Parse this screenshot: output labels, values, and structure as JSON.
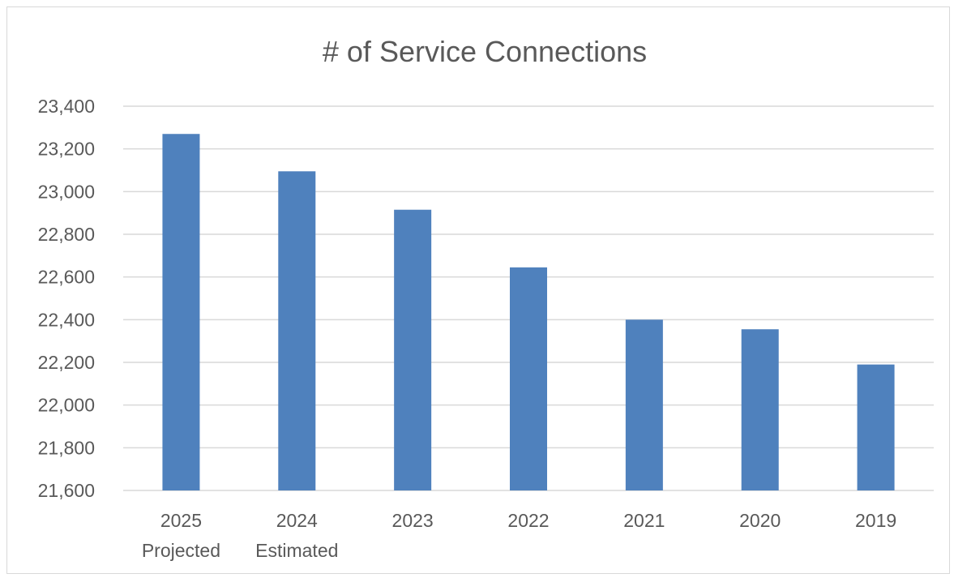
{
  "chart_data": {
    "type": "bar",
    "title": "# of Service Connections",
    "xlabel": "",
    "ylabel": "",
    "categories": [
      [
        "2025",
        "Projected"
      ],
      [
        "2024",
        "Estimated"
      ],
      [
        "2023"
      ],
      [
        "2022"
      ],
      [
        "2021"
      ],
      [
        "2020"
      ],
      [
        "2019"
      ]
    ],
    "values": [
      23270,
      23095,
      22915,
      22645,
      22400,
      22355,
      22190
    ],
    "ylim": [
      21600,
      23400
    ],
    "yticks": [
      21600,
      21800,
      22000,
      22200,
      22400,
      22600,
      22800,
      23000,
      23200,
      23400
    ],
    "ytick_labels": [
      "21,600",
      "21,800",
      "22,000",
      "22,200",
      "22,400",
      "22,600",
      "22,800",
      "23,000",
      "23,200",
      "23,400"
    ],
    "grid": true,
    "legend": "none",
    "bar_color": "#4f81bd"
  }
}
